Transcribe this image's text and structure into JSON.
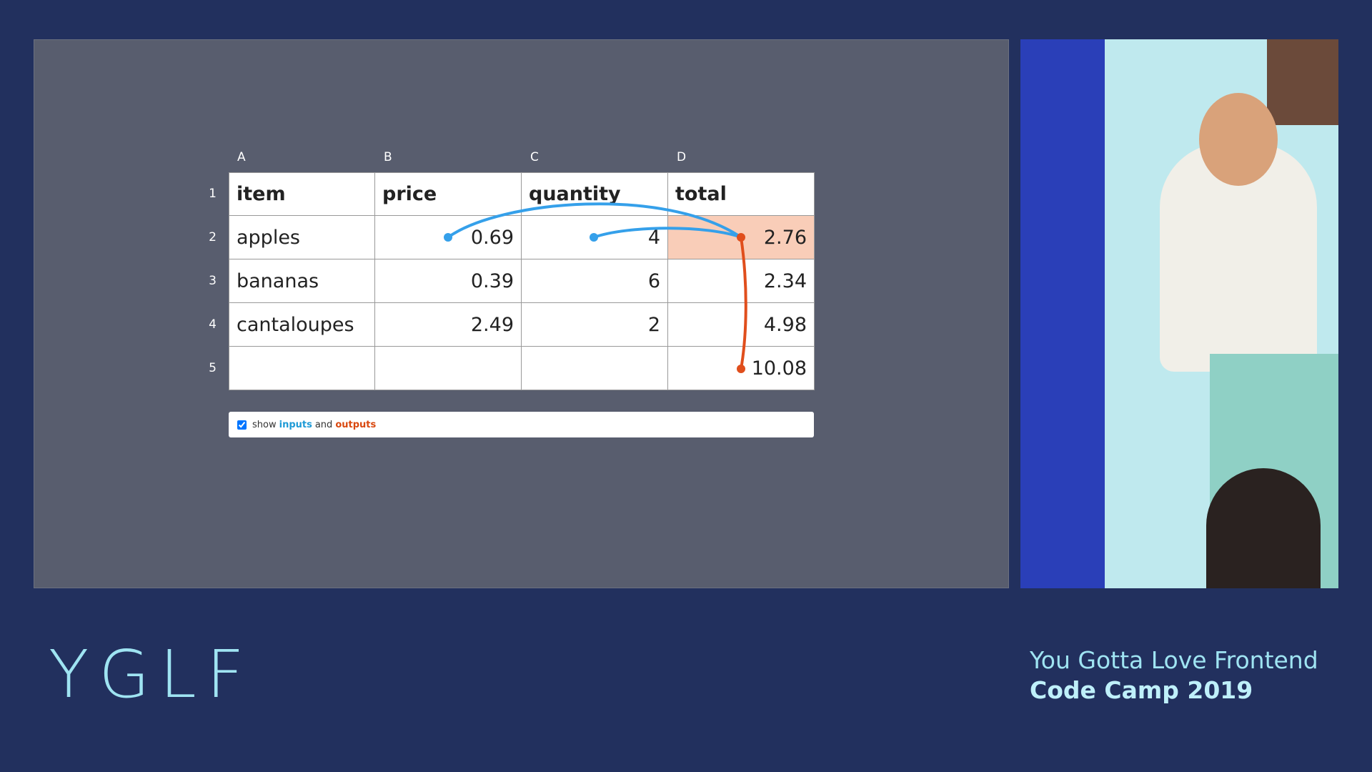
{
  "spreadsheet": {
    "columns": [
      "A",
      "B",
      "C",
      "D"
    ],
    "row_numbers": [
      "1",
      "2",
      "3",
      "4",
      "5"
    ],
    "rows": [
      [
        "item",
        "price",
        "quantity",
        "total"
      ],
      [
        "apples",
        0.69,
        4,
        2.76
      ],
      [
        "bananas",
        0.39,
        6,
        2.34
      ],
      [
        "cantaloupes",
        2.49,
        2,
        4.98
      ],
      [
        null,
        null,
        null,
        10.08
      ]
    ],
    "toggle": {
      "prefix": "show",
      "inputs": "inputs",
      "joiner": "and",
      "outputs": "outputs"
    }
  },
  "branding": {
    "logo": "YGLF",
    "event_name": "You Gotta Love Frontend",
    "event_edition": "Code Camp 2019"
  }
}
